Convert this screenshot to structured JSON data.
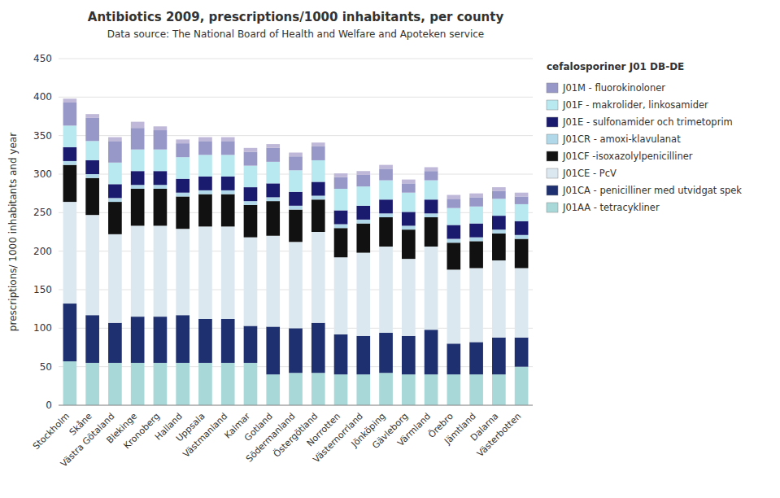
{
  "chart_data": {
    "type": "bar",
    "stacked": true,
    "grid": true,
    "title": "Antibiotics 2009, prescriptions/1000 inhabitants, per county",
    "subtitle": "Data source: The National Board of Health and Welfare and Apoteken service",
    "ylabel": "prescriptions/ 1000 inhabitants and year",
    "legend_title": "cefalosporiner J01 DB-DE",
    "ylim": [
      0,
      450
    ],
    "yticks": [
      0,
      50,
      100,
      150,
      200,
      250,
      300,
      350,
      400,
      450
    ],
    "categories": [
      "Stockholm",
      "Skåne",
      "Västra Götaland",
      "Blekinge",
      "Kronoberg",
      "Halland",
      "Uppsala",
      "Västmanland",
      "Kalmar",
      "Gotland",
      "Södermanland",
      "Östergötland",
      "Norrotten",
      "Västernorrland",
      "Jönköping",
      "Gävleborg",
      "Värmland",
      "Örebro",
      "Jämtland",
      "Dalarna",
      "Västerbotten"
    ],
    "series": [
      {
        "name": "J01AA - tetracykliner",
        "color": "#a8d8d8",
        "values": [
          57,
          55,
          55,
          55,
          55,
          55,
          55,
          55,
          55,
          40,
          42,
          42,
          40,
          40,
          42,
          40,
          40,
          40,
          40,
          40,
          50
        ]
      },
      {
        "name": "J01CA - penicilliner med utvidgat spek",
        "color": "#1e3070",
        "values": [
          75,
          62,
          52,
          60,
          60,
          62,
          57,
          57,
          48,
          62,
          58,
          65,
          52,
          50,
          52,
          50,
          58,
          40,
          42,
          48,
          38
        ]
      },
      {
        "name": "J01CE - PcV",
        "color": "#dce8f0",
        "values": [
          132,
          130,
          115,
          118,
          118,
          112,
          120,
          120,
          115,
          118,
          112,
          118,
          100,
          108,
          112,
          100,
          108,
          96,
          96,
          100,
          90
        ]
      },
      {
        "name": "J01CF -isoxazolylpenicilliner",
        "color": "#111111",
        "values": [
          48,
          48,
          42,
          48,
          48,
          42,
          42,
          42,
          42,
          45,
          42,
          42,
          38,
          38,
          38,
          38,
          38,
          35,
          35,
          35,
          38
        ]
      },
      {
        "name": "J01CR - amoxi-klavulanat",
        "color": "#b0d8e8",
        "values": [
          5,
          5,
          5,
          5,
          5,
          5,
          5,
          5,
          5,
          5,
          5,
          5,
          5,
          5,
          5,
          5,
          5,
          5,
          5,
          5,
          5
        ]
      },
      {
        "name": "J01E - sulfonamider och trimetoprim",
        "color": "#1a1a6e",
        "values": [
          18,
          18,
          18,
          18,
          18,
          18,
          18,
          18,
          18,
          18,
          18,
          18,
          18,
          18,
          18,
          18,
          18,
          18,
          18,
          18,
          18
        ]
      },
      {
        "name": "J01F - makrolider, linkosamider",
        "color": "#b8e8f0",
        "values": [
          28,
          25,
          28,
          28,
          28,
          28,
          28,
          28,
          28,
          28,
          28,
          28,
          28,
          25,
          25,
          25,
          25,
          22,
          22,
          22,
          22
        ]
      },
      {
        "name": "J01M - fluorokinoloner",
        "color": "#9898c8",
        "values": [
          30,
          30,
          28,
          28,
          25,
          18,
          18,
          18,
          18,
          18,
          18,
          18,
          15,
          15,
          15,
          12,
          12,
          12,
          12,
          10,
          10
        ]
      },
      {
        "name": "cefalosporiner J01 DB-DE",
        "color": "#c0b8d8",
        "values": [
          5,
          5,
          5,
          8,
          5,
          5,
          5,
          5,
          5,
          5,
          5,
          5,
          5,
          5,
          5,
          5,
          5,
          5,
          5,
          5,
          5
        ]
      }
    ]
  }
}
